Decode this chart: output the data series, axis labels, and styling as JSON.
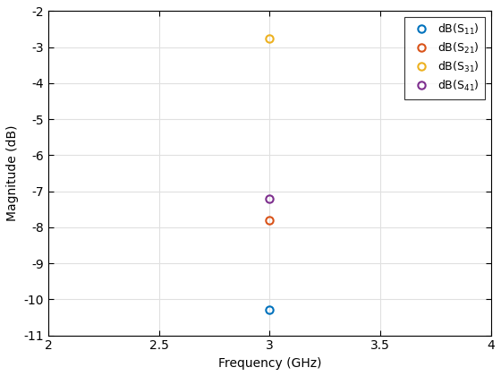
{
  "series": [
    {
      "label": "dB(S$_{11}$)",
      "x": [
        3.0
      ],
      "y": [
        -10.3
      ],
      "color": "#0072BD",
      "marker": "o",
      "markersize": 6,
      "linestyle": "-"
    },
    {
      "label": "dB(S$_{21}$)",
      "x": [
        3.0
      ],
      "y": [
        -7.8
      ],
      "color": "#D95319",
      "marker": "o",
      "markersize": 6,
      "linestyle": "-"
    },
    {
      "label": "dB(S$_{31}$)",
      "x": [
        3.0
      ],
      "y": [
        -2.75
      ],
      "color": "#EDB120",
      "marker": "o",
      "markersize": 6,
      "linestyle": "-"
    },
    {
      "label": "dB(S$_{41}$)",
      "x": [
        3.0
      ],
      "y": [
        -7.2
      ],
      "color": "#7E2F8E",
      "marker": "o",
      "markersize": 6,
      "linestyle": "-"
    }
  ],
  "xlabel": "Frequency (GHz)",
  "ylabel": "Magnitude (dB)",
  "xlim": [
    2,
    4
  ],
  "ylim": [
    -11,
    -2
  ],
  "xticks": [
    2,
    2.5,
    3,
    3.5,
    4
  ],
  "yticks": [
    -11,
    -10,
    -9,
    -8,
    -7,
    -6,
    -5,
    -4,
    -3,
    -2
  ],
  "grid_color": "#e0e0e0",
  "axes_facecolor": "#ffffff",
  "fig_facecolor": "#ffffff",
  "legend_loc": "upper right",
  "figsize": [
    5.6,
    4.2
  ],
  "dpi": 100
}
